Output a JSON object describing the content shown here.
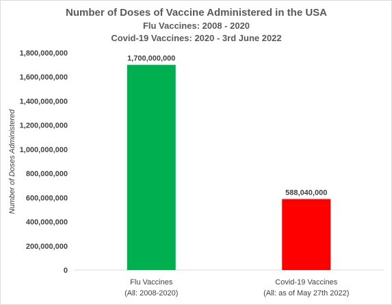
{
  "chart_data": {
    "type": "bar",
    "title": "Number of Doses of Vaccine Administered in the USA",
    "subtitle": [
      "Flu Vaccines: 2008 - 2020",
      "Covid-19 Vaccines: 2020 - 3rd June 2022"
    ],
    "categories": [
      [
        "Flu Vaccines",
        "(All: 2008-2020)"
      ],
      [
        "Covid-19 Vaccines",
        "(All: as of May 27th 2022)"
      ]
    ],
    "values": [
      1700000000,
      588040000
    ],
    "data_labels": [
      "1,700,000,000",
      "588,040,000"
    ],
    "colors": [
      "#00b050",
      "#ff0000"
    ],
    "xlabel": "",
    "ylabel": "Number of Doses Administered",
    "ylim": [
      0,
      1800000000
    ],
    "yticks": [
      0,
      200000000,
      400000000,
      600000000,
      800000000,
      1000000000,
      1200000000,
      1400000000,
      1600000000,
      1800000000
    ],
    "ytick_labels": [
      "0",
      "200,000,000",
      "400,000,000",
      "600,000,000",
      "800,000,000",
      "1,000,000,000",
      "1,200,000,000",
      "1,400,000,000",
      "1,600,000,000",
      "1,800,000,000"
    ],
    "grid": false,
    "legend": "none"
  }
}
